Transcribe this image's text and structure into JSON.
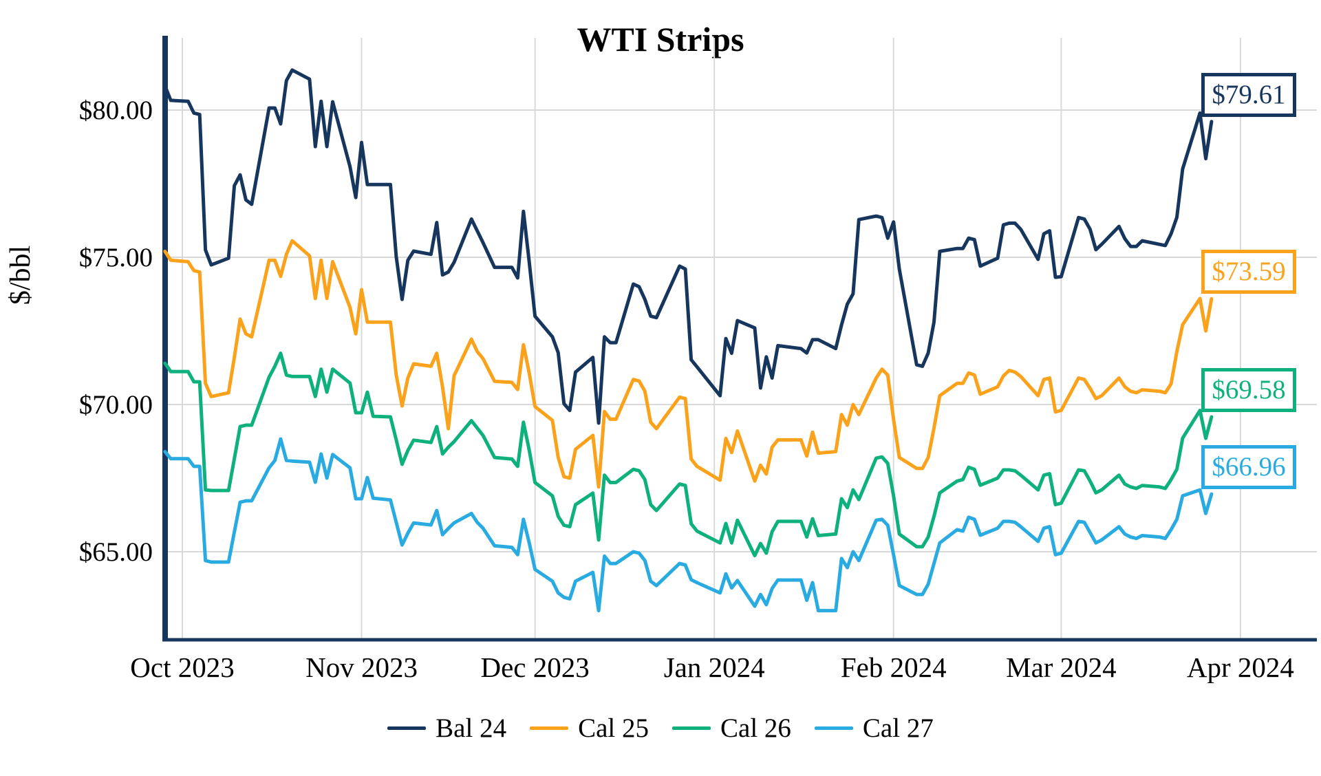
{
  "page": {
    "background": "#ffffff"
  },
  "chart_data": {
    "type": "line",
    "title": "WTI Strips",
    "ylabel": "$/bbl",
    "grid": true,
    "legend_position": "bottom",
    "ylim": [
      62.0,
      82.5
    ],
    "y_ticks": [
      {
        "value": 80,
        "label": "$80.00"
      },
      {
        "value": 75,
        "label": "$75.00"
      },
      {
        "value": 70,
        "label": "$70.00"
      },
      {
        "value": 65,
        "label": "$65.00"
      }
    ],
    "x_ticks": [
      {
        "date": "2023-10-01",
        "label": "Oct 2023"
      },
      {
        "date": "2023-11-01",
        "label": "Nov 2023"
      },
      {
        "date": "2023-12-01",
        "label": "Dec 2023"
      },
      {
        "date": "2024-01-01",
        "label": "Jan 2024"
      },
      {
        "date": "2024-02-01",
        "label": "Feb 2024"
      },
      {
        "date": "2024-03-01",
        "label": "Mar 2024"
      },
      {
        "date": "2024-04-01",
        "label": "Apr 2024"
      }
    ],
    "dates": [
      "2023-09-28",
      "2023-09-29",
      "2023-10-02",
      "2023-10-03",
      "2023-10-04",
      "2023-10-05",
      "2023-10-06",
      "2023-10-09",
      "2023-10-10",
      "2023-10-11",
      "2023-10-12",
      "2023-10-13",
      "2023-10-16",
      "2023-10-17",
      "2023-10-18",
      "2023-10-19",
      "2023-10-20",
      "2023-10-23",
      "2023-10-24",
      "2023-10-25",
      "2023-10-26",
      "2023-10-27",
      "2023-10-30",
      "2023-10-31",
      "2023-11-01",
      "2023-11-02",
      "2023-11-03",
      "2023-11-06",
      "2023-11-07",
      "2023-11-08",
      "2023-11-09",
      "2023-11-10",
      "2023-11-13",
      "2023-11-14",
      "2023-11-15",
      "2023-11-16",
      "2023-11-17",
      "2023-11-20",
      "2023-11-21",
      "2023-11-22",
      "2023-11-24",
      "2023-11-27",
      "2023-11-28",
      "2023-11-29",
      "2023-11-30",
      "2023-12-01",
      "2023-12-04",
      "2023-12-05",
      "2023-12-06",
      "2023-12-07",
      "2023-12-08",
      "2023-12-11",
      "2023-12-12",
      "2023-12-13",
      "2023-12-14",
      "2023-12-15",
      "2023-12-18",
      "2023-12-19",
      "2023-12-20",
      "2023-12-21",
      "2023-12-22",
      "2023-12-26",
      "2023-12-27",
      "2023-12-28",
      "2023-12-29",
      "2024-01-02",
      "2024-01-03",
      "2024-01-04",
      "2024-01-05",
      "2024-01-08",
      "2024-01-09",
      "2024-01-10",
      "2024-01-11",
      "2024-01-12",
      "2024-01-16",
      "2024-01-17",
      "2024-01-18",
      "2024-01-19",
      "2024-01-22",
      "2024-01-23",
      "2024-01-24",
      "2024-01-25",
      "2024-01-26",
      "2024-01-29",
      "2024-01-30",
      "2024-01-31",
      "2024-02-01",
      "2024-02-02",
      "2024-02-05",
      "2024-02-06",
      "2024-02-07",
      "2024-02-08",
      "2024-02-09",
      "2024-02-12",
      "2024-02-13",
      "2024-02-14",
      "2024-02-15",
      "2024-02-16",
      "2024-02-19",
      "2024-02-20",
      "2024-02-21",
      "2024-02-22",
      "2024-02-23",
      "2024-02-26",
      "2024-02-27",
      "2024-02-28",
      "2024-02-29",
      "2024-03-01",
      "2024-03-04",
      "2024-03-05",
      "2024-03-06",
      "2024-03-07",
      "2024-03-08",
      "2024-03-11",
      "2024-03-12",
      "2024-03-13",
      "2024-03-14",
      "2024-03-15",
      "2024-03-18",
      "2024-03-19",
      "2024-03-20",
      "2024-03-21",
      "2024-03-22",
      "2024-03-25",
      "2024-03-26",
      "2024-03-27"
    ],
    "series": [
      {
        "name": "Bal 24",
        "color": "#17365d",
        "end_label": "$79.61",
        "end_value": 79.61,
        "values": [
          80.82,
          80.33,
          80.3,
          79.9,
          79.85,
          75.25,
          74.74,
          74.97,
          77.43,
          77.8,
          76.95,
          76.8,
          80.07,
          80.07,
          79.53,
          81.0,
          81.36,
          81.05,
          78.76,
          80.3,
          78.76,
          80.28,
          78.08,
          77.03,
          78.9,
          77.47,
          77.47,
          77.47,
          75.02,
          73.57,
          74.9,
          75.21,
          75.1,
          76.18,
          74.4,
          74.5,
          74.83,
          76.3,
          75.9,
          75.5,
          74.66,
          74.66,
          74.3,
          76.56,
          74.84,
          73.0,
          72.3,
          71.76,
          70.03,
          69.8,
          71.1,
          71.6,
          69.37,
          72.3,
          72.1,
          72.1,
          74.09,
          74.0,
          73.57,
          73.0,
          72.95,
          74.7,
          74.6,
          71.52,
          71.28,
          70.3,
          72.24,
          71.74,
          72.85,
          72.6,
          70.56,
          71.62,
          70.9,
          72.0,
          71.9,
          71.75,
          72.2,
          72.2,
          71.9,
          72.7,
          73.41,
          73.76,
          76.28,
          76.4,
          76.35,
          75.65,
          76.2,
          74.6,
          71.35,
          71.3,
          71.75,
          72.8,
          75.2,
          75.3,
          75.3,
          75.65,
          75.6,
          74.7,
          74.97,
          76.1,
          76.16,
          76.16,
          75.95,
          74.93,
          75.8,
          75.9,
          74.32,
          74.34,
          76.35,
          76.3,
          75.95,
          75.26,
          75.44,
          76.05,
          75.63,
          75.37,
          75.37,
          75.56,
          75.44,
          75.4,
          75.8,
          76.36,
          78.0,
          79.9,
          78.35,
          79.61
        ]
      },
      {
        "name": "Cal 25",
        "color": "#faa21b",
        "end_label": "$73.59",
        "end_value": 73.59,
        "values": [
          75.2,
          74.9,
          74.85,
          74.55,
          74.5,
          70.72,
          70.27,
          70.4,
          71.6,
          72.9,
          72.4,
          72.3,
          74.9,
          74.9,
          74.35,
          75.1,
          75.56,
          75.05,
          73.6,
          74.9,
          73.6,
          74.85,
          73.3,
          72.4,
          73.9,
          72.8,
          72.8,
          72.8,
          71.0,
          69.95,
          70.9,
          71.38,
          71.3,
          71.74,
          70.6,
          69.18,
          70.98,
          72.22,
          71.8,
          71.56,
          70.79,
          70.75,
          70.51,
          72.03,
          71.07,
          69.93,
          69.46,
          68.2,
          67.55,
          67.5,
          68.48,
          68.95,
          67.2,
          69.76,
          69.5,
          69.5,
          70.85,
          70.8,
          70.45,
          69.4,
          69.18,
          70.25,
          70.2,
          68.15,
          67.9,
          67.43,
          68.85,
          68.37,
          69.1,
          67.4,
          67.94,
          67.64,
          68.55,
          68.8,
          68.8,
          68.25,
          69.06,
          68.35,
          68.4,
          69.66,
          69.3,
          70.0,
          69.66,
          70.9,
          71.2,
          71.0,
          69.5,
          68.2,
          67.83,
          67.83,
          68.2,
          69.2,
          70.3,
          70.72,
          70.72,
          71.07,
          71.0,
          70.35,
          70.6,
          70.97,
          71.16,
          71.1,
          70.95,
          70.3,
          70.85,
          70.9,
          69.75,
          69.8,
          70.9,
          70.85,
          70.55,
          70.2,
          70.3,
          70.9,
          70.6,
          70.45,
          70.4,
          70.5,
          70.45,
          70.4,
          70.7,
          71.8,
          72.71,
          73.6,
          72.5,
          73.59
        ]
      },
      {
        "name": "Cal 26",
        "color": "#0eb07d",
        "end_label": "$69.58",
        "end_value": 69.58,
        "values": [
          71.4,
          71.12,
          71.12,
          70.77,
          70.77,
          67.1,
          67.08,
          67.08,
          68.16,
          69.25,
          69.3,
          69.3,
          70.93,
          71.3,
          71.74,
          71.0,
          70.95,
          70.95,
          70.27,
          71.2,
          70.42,
          71.2,
          70.73,
          69.72,
          69.72,
          70.42,
          69.6,
          69.58,
          68.8,
          67.97,
          68.44,
          68.79,
          68.71,
          69.25,
          68.32,
          68.55,
          68.74,
          69.45,
          69.2,
          68.95,
          68.2,
          68.15,
          67.9,
          69.4,
          68.45,
          67.35,
          66.9,
          66.2,
          65.9,
          65.85,
          66.6,
          66.99,
          65.4,
          67.6,
          67.35,
          67.35,
          67.8,
          67.75,
          67.45,
          66.6,
          66.4,
          67.3,
          67.25,
          65.95,
          65.7,
          65.3,
          65.96,
          65.3,
          66.07,
          64.87,
          65.28,
          64.95,
          65.68,
          66.03,
          66.03,
          65.5,
          66.12,
          65.55,
          65.6,
          66.8,
          66.5,
          67.1,
          66.77,
          68.18,
          68.22,
          68.0,
          66.9,
          65.6,
          65.17,
          65.17,
          65.5,
          66.2,
          67.0,
          67.4,
          67.45,
          67.87,
          67.8,
          67.26,
          67.5,
          67.78,
          67.78,
          67.75,
          67.6,
          67.1,
          67.6,
          67.65,
          66.6,
          66.65,
          67.78,
          67.75,
          67.4,
          67.0,
          67.1,
          67.6,
          67.3,
          67.2,
          67.15,
          67.25,
          67.2,
          67.15,
          67.45,
          67.8,
          68.86,
          69.8,
          68.85,
          69.58
        ]
      },
      {
        "name": "Cal 27",
        "color": "#29abe2",
        "end_label": "$66.96",
        "end_value": 66.96,
        "values": [
          68.4,
          68.16,
          68.16,
          67.9,
          67.9,
          64.7,
          64.65,
          64.65,
          65.67,
          66.68,
          66.73,
          66.73,
          67.85,
          68.1,
          68.83,
          68.1,
          68.08,
          68.04,
          67.36,
          68.32,
          67.5,
          68.3,
          67.85,
          66.8,
          66.8,
          67.52,
          66.82,
          66.76,
          66.0,
          65.23,
          65.63,
          65.98,
          65.91,
          66.4,
          65.58,
          65.79,
          65.98,
          66.3,
          66.0,
          65.8,
          65.2,
          65.15,
          64.9,
          66.1,
          65.3,
          64.4,
          64.0,
          63.6,
          63.45,
          63.4,
          64.0,
          64.3,
          63.0,
          64.85,
          64.6,
          64.6,
          65.0,
          64.95,
          64.7,
          64.0,
          63.85,
          64.6,
          64.55,
          64.05,
          63.95,
          63.6,
          64.25,
          63.77,
          64.02,
          63.15,
          63.55,
          63.2,
          63.75,
          64.04,
          64.04,
          63.35,
          63.95,
          63.0,
          63.0,
          64.77,
          64.46,
          65.0,
          64.7,
          66.07,
          66.1,
          65.9,
          64.9,
          63.85,
          63.55,
          63.55,
          63.9,
          64.6,
          65.3,
          65.75,
          65.7,
          66.17,
          66.1,
          65.56,
          65.8,
          66.03,
          66.03,
          66.0,
          65.85,
          65.35,
          65.8,
          65.85,
          64.9,
          64.95,
          66.03,
          66.0,
          65.65,
          65.3,
          65.4,
          65.85,
          65.6,
          65.5,
          65.45,
          65.55,
          65.5,
          65.45,
          65.75,
          66.1,
          66.9,
          67.1,
          66.3,
          66.96
        ]
      }
    ],
    "style": {
      "grid_color": "#d9d9d9",
      "axis_color": "#17365d",
      "text_color": "#000000"
    }
  }
}
